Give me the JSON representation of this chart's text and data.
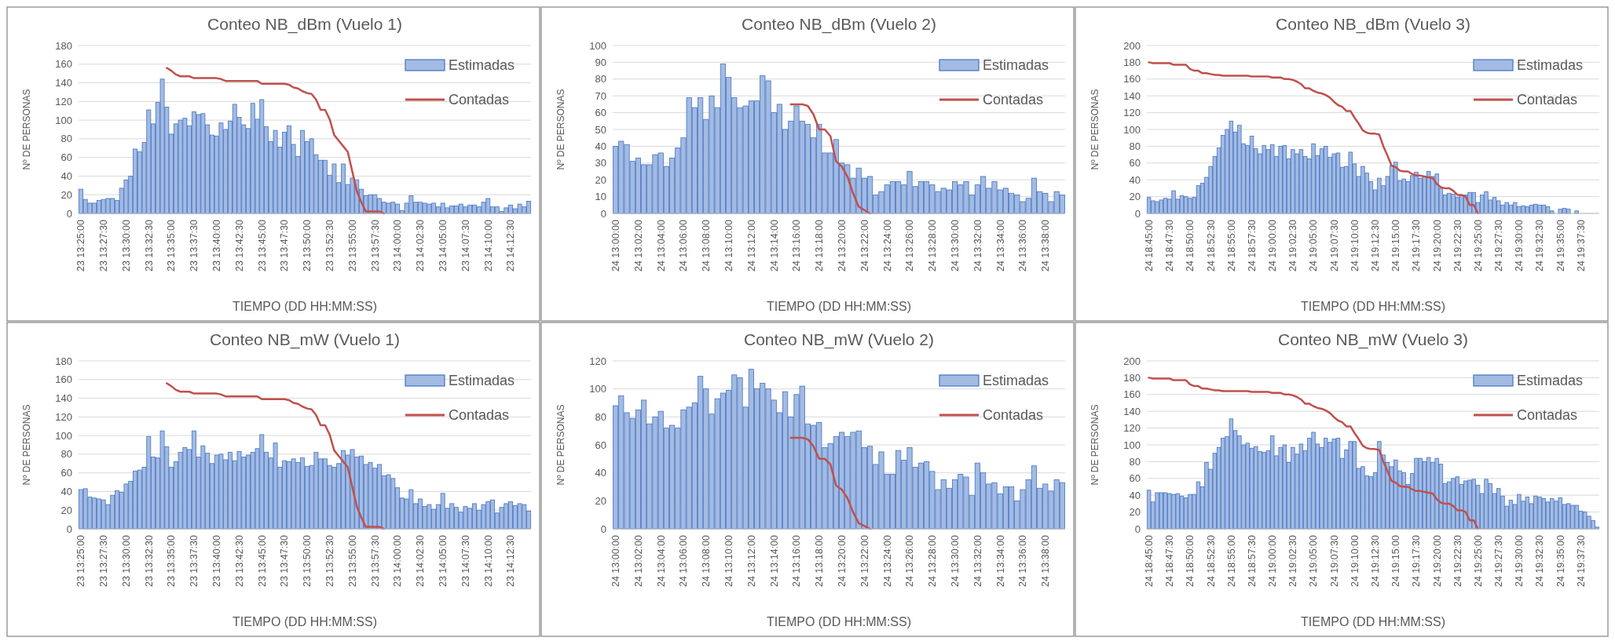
{
  "chart_data": [
    {
      "type": "bar",
      "title": "Conteo NB_dBm (Vuelo 1)",
      "xlabel": "TIEMPO (DD HH:MM:SS)",
      "ylabel": "Nº DE PERSONAS",
      "ylim": [
        0,
        180
      ],
      "yticks": [
        0,
        20,
        40,
        60,
        80,
        100,
        120,
        140,
        160,
        180
      ],
      "grid": "y",
      "legend": "top right",
      "categories": [
        "23 13:25:00",
        null,
        null,
        null,
        null,
        "23 13:27:30",
        null,
        null,
        null,
        null,
        "23 13:30:00",
        null,
        null,
        null,
        null,
        "23 13:32:30",
        null,
        null,
        null,
        null,
        "23 13:35:00",
        null,
        null,
        null,
        null,
        "23 13:37:30",
        null,
        null,
        null,
        null,
        "23 13:40:00",
        null,
        null,
        null,
        null,
        "23 13:42:30",
        null,
        null,
        null,
        null,
        "23 13:45:00",
        null,
        null,
        null,
        null,
        "23 13:47:30",
        null,
        null,
        null,
        null,
        "23 13:50:00",
        null,
        null,
        null,
        null,
        "23 13:52:30",
        null,
        null,
        null,
        null,
        "23 13:55:00",
        null,
        null,
        null,
        null,
        "23 13:57:30",
        null,
        null,
        null,
        null,
        "23 14:00:00",
        null,
        null,
        null,
        null,
        "23 14:02:30",
        null,
        null,
        null,
        null,
        "23 14:05:00",
        null,
        null,
        null,
        null,
        "23 14:07:30",
        null,
        null,
        null,
        null,
        "23 14:10:00",
        null,
        null,
        null,
        null,
        "23 14:12:30",
        null,
        null,
        null,
        null
      ],
      "series": [
        {
          "name": "Estimadas",
          "type": "bar",
          "color": "#a3bbe2",
          "values": [
            26,
            15,
            11,
            11,
            14,
            15,
            16,
            16,
            14,
            27,
            36,
            40,
            69,
            66,
            76,
            111,
            96,
            119,
            144,
            114,
            85,
            96,
            100,
            102,
            94,
            109,
            106,
            107,
            95,
            84,
            83,
            97,
            90,
            99,
            117,
            103,
            95,
            91,
            118,
            101,
            122,
            93,
            77,
            89,
            71,
            87,
            94,
            74,
            61,
            89,
            77,
            80,
            63,
            57,
            57,
            41,
            53,
            33,
            53,
            31,
            38,
            36,
            26,
            19,
            20,
            20,
            16,
            12,
            11,
            12,
            10,
            3,
            11,
            19,
            12,
            12,
            11,
            10,
            11,
            7,
            11,
            6,
            8,
            8,
            10,
            7,
            9,
            9,
            7,
            12,
            16,
            7,
            7,
            2,
            6,
            9,
            5,
            10,
            7,
            13
          ]
        },
        {
          "name": "Contadas",
          "type": "line",
          "color": "#c0504d",
          "values": [
            null,
            null,
            null,
            null,
            null,
            null,
            null,
            null,
            null,
            null,
            null,
            null,
            null,
            null,
            null,
            null,
            null,
            null,
            null,
            156,
            153,
            149,
            147,
            147,
            147,
            145,
            145,
            145,
            145,
            145,
            145,
            144,
            142,
            142,
            142,
            142,
            142,
            142,
            142,
            142,
            139,
            139,
            139,
            139,
            139,
            139,
            138,
            135,
            134,
            131,
            129,
            128,
            122,
            111,
            111,
            101,
            84,
            78,
            72,
            66,
            45,
            24,
            12,
            2,
            2,
            2,
            2,
            0,
            null,
            null,
            null,
            null,
            null,
            null,
            null,
            null,
            null,
            null,
            null,
            null,
            null,
            null,
            null,
            null,
            null,
            null,
            null,
            null,
            null,
            null,
            null,
            null,
            null,
            null,
            null,
            null,
            null,
            null,
            null,
            null
          ]
        }
      ]
    },
    {
      "type": "bar",
      "title": "Conteo NB_dBm (Vuelo 2)",
      "xlabel": "TIEMPO (DD HH:MM:SS)",
      "ylabel": "Nº DE PERSONAS",
      "ylim": [
        0,
        100
      ],
      "yticks": [
        0,
        10,
        20,
        30,
        40,
        50,
        60,
        70,
        80,
        90,
        100
      ],
      "grid": "y",
      "legend": "top right",
      "categories": [
        "24 13:00:00",
        null,
        null,
        null,
        "24 13:02:00",
        null,
        null,
        null,
        "24 13:04:00",
        null,
        null,
        null,
        "24 13:06:00",
        null,
        null,
        null,
        "24 13:08:00",
        null,
        null,
        null,
        "24 13:10:00",
        null,
        null,
        null,
        "24 13:12:00",
        null,
        null,
        null,
        "24 13:14:00",
        null,
        null,
        null,
        "24 13:16:00",
        null,
        null,
        null,
        "24 13:18:00",
        null,
        null,
        null,
        "24 13:20:00",
        null,
        null,
        null,
        "24 13:22:00",
        null,
        null,
        null,
        "24 13:24:00",
        null,
        null,
        null,
        "24 13:26:00",
        null,
        null,
        null,
        "24 13:28:00",
        null,
        null,
        null,
        "24 13:30:00",
        null,
        null,
        null,
        "24 13:32:00",
        null,
        null,
        null,
        "24 13:34:00",
        null,
        null,
        null,
        "24 13:36:00",
        null,
        null,
        null,
        "24 13:38:00",
        null,
        null,
        null
      ],
      "series": [
        {
          "name": "Estimadas",
          "type": "bar",
          "color": "#a3bbe2",
          "values": [
            40,
            43,
            41,
            31,
            33,
            29,
            29,
            35,
            36,
            28,
            33,
            39,
            45,
            69,
            63,
            69,
            56,
            70,
            63,
            89,
            81,
            69,
            63,
            64,
            67,
            67,
            82,
            79,
            60,
            65,
            50,
            55,
            64,
            55,
            53,
            45,
            53,
            36,
            36,
            44,
            30,
            29,
            21,
            27,
            21,
            22,
            11,
            13,
            17,
            19,
            19,
            17,
            25,
            16,
            19,
            19,
            17,
            13,
            15,
            14,
            19,
            17,
            19,
            11,
            17,
            22,
            15,
            19,
            14,
            15,
            12,
            11,
            7,
            9,
            21,
            13,
            12,
            7,
            13,
            11
          ]
        },
        {
          "name": "Contadas",
          "type": "line",
          "color": "#c0504d",
          "values": [
            null,
            null,
            null,
            null,
            null,
            null,
            null,
            null,
            null,
            null,
            null,
            null,
            null,
            null,
            null,
            null,
            null,
            null,
            null,
            null,
            null,
            null,
            null,
            null,
            null,
            null,
            null,
            null,
            null,
            null,
            null,
            65,
            65,
            65,
            64,
            59,
            50,
            50,
            46,
            31,
            28,
            22,
            12,
            4,
            2,
            0,
            null,
            null,
            null,
            null,
            null,
            null,
            null,
            null,
            null,
            null,
            null,
            null,
            null,
            null,
            null,
            null,
            null,
            null,
            null,
            null,
            null,
            null,
            null,
            null,
            null,
            null,
            null,
            null,
            null,
            null,
            null,
            null,
            null,
            null
          ]
        }
      ]
    },
    {
      "type": "bar",
      "title": "Conteo NB_dBm (Vuelo 3)",
      "xlabel": "TIEMPO (DD HH:MM:SS)",
      "ylabel": "Nº DE PERSONAS",
      "ylim": [
        0,
        200
      ],
      "yticks": [
        0,
        20,
        40,
        60,
        80,
        100,
        120,
        140,
        160,
        180,
        200
      ],
      "grid": "y",
      "legend": "top right",
      "categories": [
        "24 18:45:00",
        null,
        null,
        null,
        null,
        "24 18:47:30",
        null,
        null,
        null,
        null,
        "24 18:50:00",
        null,
        null,
        null,
        null,
        "24 18:52:30",
        null,
        null,
        null,
        null,
        "24 18:55:00",
        null,
        null,
        null,
        null,
        "24 18:57:30",
        null,
        null,
        null,
        null,
        "24 19:00:00",
        null,
        null,
        null,
        null,
        "24 19:02:30",
        null,
        null,
        null,
        null,
        "24 19:05:00",
        null,
        null,
        null,
        null,
        "24 19:07:30",
        null,
        null,
        null,
        null,
        "24 19:10:00",
        null,
        null,
        null,
        null,
        "24 19:12:30",
        null,
        null,
        null,
        null,
        "24 19:15:00",
        null,
        null,
        null,
        null,
        "24 19:17:30",
        null,
        null,
        null,
        null,
        "24 19:20:00",
        null,
        null,
        null,
        null,
        "24 19:22:30",
        null,
        null,
        null,
        null,
        "24 19:25:00",
        null,
        null,
        null,
        null,
        "24 19:27:30",
        null,
        null,
        null,
        null,
        "24 19:30:00",
        null,
        null,
        null,
        null,
        "24 19:32:30",
        null,
        null,
        null,
        null,
        "24 19:35:00",
        null,
        null,
        null,
        null,
        "24 19:37:30",
        null,
        null,
        null,
        null
      ],
      "series": [
        {
          "name": "Estimadas",
          "type": "bar",
          "color": "#a3bbe2",
          "values": [
            19,
            15,
            14,
            16,
            18,
            17,
            27,
            17,
            21,
            20,
            18,
            19,
            33,
            36,
            43,
            56,
            68,
            78,
            93,
            100,
            110,
            97,
            105,
            83,
            81,
            92,
            77,
            71,
            81,
            76,
            82,
            68,
            80,
            81,
            65,
            76,
            71,
            76,
            68,
            65,
            83,
            69,
            77,
            80,
            67,
            71,
            72,
            55,
            56,
            73,
            59,
            44,
            56,
            48,
            38,
            28,
            42,
            33,
            44,
            57,
            61,
            39,
            41,
            38,
            45,
            49,
            42,
            44,
            50,
            44,
            47,
            30,
            22,
            24,
            23,
            19,
            21,
            22,
            25,
            25,
            13,
            22,
            26,
            16,
            19,
            15,
            10,
            13,
            10,
            13,
            8,
            9,
            8,
            10,
            11,
            10,
            10,
            8,
            3,
            0,
            5,
            6,
            5,
            0,
            3,
            0,
            0,
            0,
            0,
            0
          ]
        },
        {
          "name": "Contadas",
          "type": "line",
          "color": "#c0504d",
          "values": [
            180,
            179,
            179,
            179,
            179,
            179,
            177,
            177,
            177,
            177,
            172,
            170,
            170,
            167,
            167,
            166,
            165,
            165,
            164,
            164,
            164,
            164,
            164,
            164,
            164,
            163,
            163,
            163,
            163,
            163,
            162,
            162,
            162,
            160,
            160,
            159,
            157,
            154,
            149,
            149,
            146,
            144,
            143,
            141,
            138,
            133,
            129,
            127,
            122,
            122,
            114,
            107,
            99,
            96,
            95,
            95,
            94,
            80,
            69,
            57,
            55,
            51,
            50,
            50,
            47,
            45,
            45,
            44,
            43,
            42,
            35,
            31,
            30,
            30,
            27,
            22,
            22,
            20,
            10,
            10,
            0,
            null,
            null,
            null,
            null,
            null,
            null,
            null,
            null,
            null,
            null,
            null,
            null,
            null,
            null,
            null,
            null,
            null,
            null,
            null,
            null,
            null,
            null,
            null,
            null,
            null,
            null,
            null,
            null,
            null
          ]
        }
      ]
    },
    {
      "type": "bar",
      "title": "Conteo NB_mW (Vuelo 1)",
      "xlabel": "TIEMPO (DD HH:MM:SS)",
      "ylabel": "Nº DE PERSONAS",
      "ylim": [
        0,
        180
      ],
      "yticks": [
        0,
        20,
        40,
        60,
        80,
        100,
        120,
        140,
        160,
        180
      ],
      "grid": "y",
      "legend": "top right",
      "categories": [
        "23 13:25:00",
        null,
        null,
        null,
        null,
        "23 13:27:30",
        null,
        null,
        null,
        null,
        "23 13:30:00",
        null,
        null,
        null,
        null,
        "23 13:32:30",
        null,
        null,
        null,
        null,
        "23 13:35:00",
        null,
        null,
        null,
        null,
        "23 13:37:30",
        null,
        null,
        null,
        null,
        "23 13:40:00",
        null,
        null,
        null,
        null,
        "23 13:42:30",
        null,
        null,
        null,
        null,
        "23 13:45:00",
        null,
        null,
        null,
        null,
        "23 13:47:30",
        null,
        null,
        null,
        null,
        "23 13:50:00",
        null,
        null,
        null,
        null,
        "23 13:52:30",
        null,
        null,
        null,
        null,
        "23 13:55:00",
        null,
        null,
        null,
        null,
        "23 13:57:30",
        null,
        null,
        null,
        null,
        "23 14:00:00",
        null,
        null,
        null,
        null,
        "23 14:02:30",
        null,
        null,
        null,
        null,
        "23 14:05:00",
        null,
        null,
        null,
        null,
        "23 14:07:30",
        null,
        null,
        null,
        null,
        "23 14:10:00",
        null,
        null,
        null,
        null,
        "23 14:12:30",
        null,
        null,
        null,
        null
      ],
      "series": [
        {
          "name": "Estimadas",
          "type": "bar",
          "color": "#a3bbe2",
          "values": [
            42,
            43,
            34,
            33,
            32,
            31,
            26,
            36,
            41,
            39,
            48,
            51,
            62,
            63,
            66,
            99,
            77,
            76,
            105,
            88,
            66,
            72,
            82,
            87,
            85,
            105,
            77,
            89,
            81,
            70,
            79,
            80,
            74,
            82,
            73,
            83,
            77,
            79,
            82,
            86,
            101,
            82,
            76,
            92,
            66,
            73,
            72,
            75,
            71,
            76,
            67,
            68,
            82,
            75,
            75,
            68,
            66,
            70,
            84,
            79,
            85,
            77,
            78,
            69,
            71,
            65,
            69,
            57,
            58,
            54,
            44,
            33,
            32,
            42,
            27,
            32,
            24,
            26,
            21,
            26,
            38,
            22,
            27,
            23,
            18,
            24,
            22,
            27,
            20,
            26,
            29,
            31,
            17,
            23,
            27,
            29,
            25,
            27,
            26,
            19
          ]
        },
        {
          "name": "Contadas",
          "type": "line",
          "color": "#c0504d",
          "values": [
            null,
            null,
            null,
            null,
            null,
            null,
            null,
            null,
            null,
            null,
            null,
            null,
            null,
            null,
            null,
            null,
            null,
            null,
            null,
            156,
            153,
            149,
            147,
            147,
            147,
            145,
            145,
            145,
            145,
            145,
            145,
            144,
            142,
            142,
            142,
            142,
            142,
            142,
            142,
            142,
            139,
            139,
            139,
            139,
            139,
            139,
            138,
            135,
            134,
            131,
            129,
            128,
            122,
            111,
            111,
            101,
            84,
            78,
            72,
            66,
            45,
            24,
            12,
            2,
            2,
            2,
            2,
            0,
            null,
            null,
            null,
            null,
            null,
            null,
            null,
            null,
            null,
            null,
            null,
            null,
            null,
            null,
            null,
            null,
            null,
            null,
            null,
            null,
            null,
            null,
            null,
            null,
            null,
            null,
            null,
            null,
            null,
            null,
            null,
            null
          ]
        }
      ]
    },
    {
      "type": "bar",
      "title": "Conteo NB_mW (Vuelo 2)",
      "xlabel": "TIEMPO (DD HH:MM:SS)",
      "ylabel": "Nº DE PERSONAS",
      "ylim": [
        0,
        120
      ],
      "yticks": [
        0,
        20,
        40,
        60,
        80,
        100,
        120
      ],
      "grid": "y",
      "legend": "top right",
      "categories": [
        "24 13:00:00",
        null,
        null,
        null,
        "24 13:02:00",
        null,
        null,
        null,
        "24 13:04:00",
        null,
        null,
        null,
        "24 13:06:00",
        null,
        null,
        null,
        "24 13:08:00",
        null,
        null,
        null,
        "24 13:10:00",
        null,
        null,
        null,
        "24 13:12:00",
        null,
        null,
        null,
        "24 13:14:00",
        null,
        null,
        null,
        "24 13:16:00",
        null,
        null,
        null,
        "24 13:18:00",
        null,
        null,
        null,
        "24 13:20:00",
        null,
        null,
        null,
        "24 13:22:00",
        null,
        null,
        null,
        "24 13:24:00",
        null,
        null,
        null,
        "24 13:26:00",
        null,
        null,
        null,
        "24 13:28:00",
        null,
        null,
        null,
        "24 13:30:00",
        null,
        null,
        null,
        "24 13:32:00",
        null,
        null,
        null,
        "24 13:34:00",
        null,
        null,
        null,
        "24 13:36:00",
        null,
        null,
        null,
        "24 13:38:00",
        null,
        null,
        null
      ],
      "series": [
        {
          "name": "Estimadas",
          "type": "bar",
          "color": "#a3bbe2",
          "values": [
            88,
            95,
            83,
            79,
            85,
            92,
            75,
            80,
            84,
            72,
            74,
            72,
            85,
            87,
            90,
            109,
            100,
            82,
            93,
            97,
            99,
            110,
            108,
            87,
            114,
            100,
            104,
            100,
            92,
            83,
            98,
            80,
            96,
            102,
            75,
            74,
            76,
            58,
            61,
            66,
            69,
            66,
            69,
            70,
            58,
            59,
            46,
            55,
            39,
            39,
            56,
            49,
            58,
            44,
            47,
            48,
            41,
            28,
            35,
            29,
            35,
            39,
            37,
            24,
            47,
            40,
            32,
            33,
            25,
            30,
            30,
            20,
            28,
            35,
            45,
            29,
            32,
            27,
            35,
            33
          ]
        },
        {
          "name": "Contadas",
          "type": "line",
          "color": "#c0504d",
          "values": [
            null,
            null,
            null,
            null,
            null,
            null,
            null,
            null,
            null,
            null,
            null,
            null,
            null,
            null,
            null,
            null,
            null,
            null,
            null,
            null,
            null,
            null,
            null,
            null,
            null,
            null,
            null,
            null,
            null,
            null,
            null,
            65,
            65,
            65,
            64,
            59,
            50,
            50,
            46,
            31,
            28,
            22,
            12,
            4,
            2,
            0,
            null,
            null,
            null,
            null,
            null,
            null,
            null,
            null,
            null,
            null,
            null,
            null,
            null,
            null,
            null,
            null,
            null,
            null,
            null,
            null,
            null,
            null,
            null,
            null,
            null,
            null,
            null,
            null,
            null,
            null,
            null,
            null,
            null,
            null
          ]
        }
      ]
    },
    {
      "type": "bar",
      "title": "Conteo NB_mW (Vuelo 3)",
      "xlabel": "TIEMPO (DD HH:MM:SS)",
      "ylabel": "Nº DE PERSONAS",
      "ylim": [
        0,
        200
      ],
      "yticks": [
        0,
        20,
        40,
        60,
        80,
        100,
        120,
        140,
        160,
        180,
        200
      ],
      "grid": "y",
      "legend": "top right",
      "categories": [
        "24 18:45:00",
        null,
        null,
        null,
        null,
        "24 18:47:30",
        null,
        null,
        null,
        null,
        "24 18:50:00",
        null,
        null,
        null,
        null,
        "24 18:52:30",
        null,
        null,
        null,
        null,
        "24 18:55:00",
        null,
        null,
        null,
        null,
        "24 18:57:30",
        null,
        null,
        null,
        null,
        "24 19:00:00",
        null,
        null,
        null,
        null,
        "24 19:02:30",
        null,
        null,
        null,
        null,
        "24 19:05:00",
        null,
        null,
        null,
        null,
        "24 19:07:30",
        null,
        null,
        null,
        null,
        "24 19:10:00",
        null,
        null,
        null,
        null,
        "24 19:12:30",
        null,
        null,
        null,
        null,
        "24 19:15:00",
        null,
        null,
        null,
        null,
        "24 19:17:30",
        null,
        null,
        null,
        null,
        "24 19:20:00",
        null,
        null,
        null,
        null,
        "24 19:22:30",
        null,
        null,
        null,
        null,
        "24 19:25:00",
        null,
        null,
        null,
        null,
        "24 19:27:30",
        null,
        null,
        null,
        null,
        "24 19:30:00",
        null,
        null,
        null,
        null,
        "24 19:32:30",
        null,
        null,
        null,
        null,
        "24 19:35:00",
        null,
        null,
        null,
        null,
        "24 19:37:30",
        null,
        null,
        null,
        null
      ],
      "series": [
        {
          "name": "Estimadas",
          "type": "bar",
          "color": "#a3bbe2",
          "values": [
            46,
            32,
            43,
            43,
            43,
            42,
            41,
            42,
            39,
            37,
            41,
            41,
            56,
            50,
            79,
            71,
            90,
            97,
            108,
            110,
            131,
            117,
            111,
            100,
            102,
            96,
            98,
            92,
            91,
            93,
            111,
            87,
            97,
            100,
            79,
            97,
            89,
            101,
            93,
            108,
            115,
            101,
            97,
            108,
            103,
            107,
            108,
            84,
            94,
            104,
            104,
            72,
            74,
            63,
            62,
            67,
            104,
            88,
            79,
            74,
            82,
            69,
            67,
            53,
            66,
            84,
            84,
            80,
            85,
            79,
            84,
            77,
            54,
            56,
            60,
            62,
            53,
            57,
            58,
            59,
            52,
            42,
            59,
            54,
            42,
            48,
            39,
            27,
            34,
            29,
            41,
            33,
            38,
            30,
            39,
            38,
            36,
            32,
            36,
            33,
            37,
            29,
            30,
            28,
            28,
            21,
            20,
            15,
            10,
            2
          ]
        },
        {
          "name": "Contadas",
          "type": "line",
          "color": "#c0504d",
          "values": [
            180,
            179,
            179,
            179,
            179,
            179,
            177,
            177,
            177,
            177,
            172,
            170,
            170,
            167,
            167,
            166,
            165,
            165,
            164,
            164,
            164,
            164,
            164,
            164,
            164,
            163,
            163,
            163,
            163,
            163,
            162,
            162,
            162,
            160,
            160,
            159,
            157,
            154,
            149,
            149,
            146,
            144,
            143,
            141,
            138,
            133,
            129,
            127,
            122,
            122,
            114,
            107,
            99,
            96,
            95,
            95,
            94,
            80,
            69,
            57,
            55,
            51,
            50,
            50,
            47,
            45,
            45,
            44,
            43,
            42,
            35,
            31,
            30,
            30,
            27,
            22,
            22,
            20,
            10,
            10,
            0,
            null,
            null,
            null,
            null,
            null,
            null,
            null,
            null,
            null,
            null,
            null,
            null,
            null,
            null,
            null,
            null,
            null,
            null,
            null,
            null,
            null,
            null,
            null,
            null,
            null,
            null,
            null,
            null,
            null
          ]
        }
      ]
    }
  ]
}
